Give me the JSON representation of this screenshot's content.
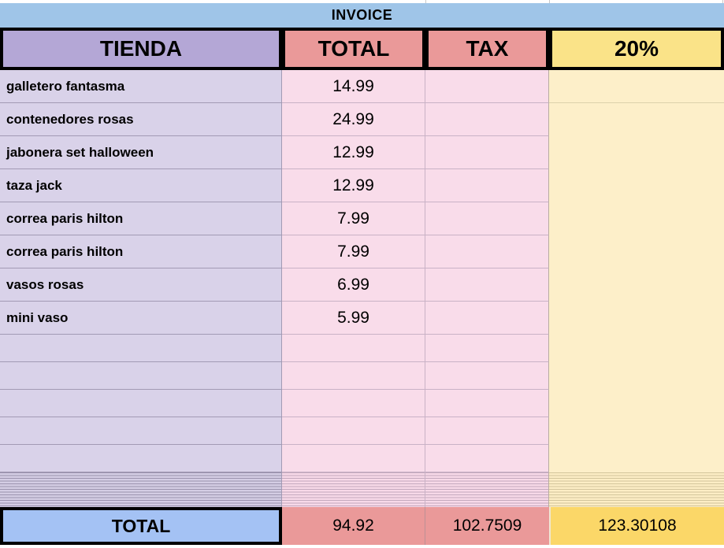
{
  "title": "INVOICE",
  "colors": {
    "title_bar": "#9fc5e8",
    "header_tienda": "#b4a7d6",
    "header_total": "#ea9999",
    "header_tax": "#ea9999",
    "header_pct": "#fae388",
    "row_tienda": "#d9d2e9",
    "row_total_tax": "#f9dcea",
    "row_pct": "#fdefc9",
    "footer_label_bg": "#a4c2f4",
    "footer_values_bg": "#ea9999",
    "footer_pct_bg": "#fbd768",
    "border": "#000000"
  },
  "table": {
    "headers": [
      "TIENDA",
      "TOTAL",
      "TAX",
      "20%"
    ],
    "rows": [
      {
        "tienda": "galletero fantasma",
        "total": "14.99",
        "tax": "",
        "pct": ""
      },
      {
        "tienda": "contenedores rosas",
        "total": "24.99",
        "tax": "",
        "pct": ""
      },
      {
        "tienda": "jabonera set halloween",
        "total": "12.99",
        "tax": "",
        "pct": ""
      },
      {
        "tienda": "taza jack",
        "total": "12.99",
        "tax": "",
        "pct": ""
      },
      {
        "tienda": "correa paris hilton",
        "total": "7.99",
        "tax": "",
        "pct": ""
      },
      {
        "tienda": "correa paris hilton",
        "total": "7.99",
        "tax": "",
        "pct": ""
      },
      {
        "tienda": "vasos rosas",
        "total": "6.99",
        "tax": "",
        "pct": ""
      },
      {
        "tienda": "mini vaso",
        "total": "5.99",
        "tax": "",
        "pct": ""
      }
    ],
    "empty_row_count": 5,
    "footer": {
      "label": "TOTAL",
      "total": "94.92",
      "tax": "102.7509",
      "pct": "123.30108"
    }
  }
}
